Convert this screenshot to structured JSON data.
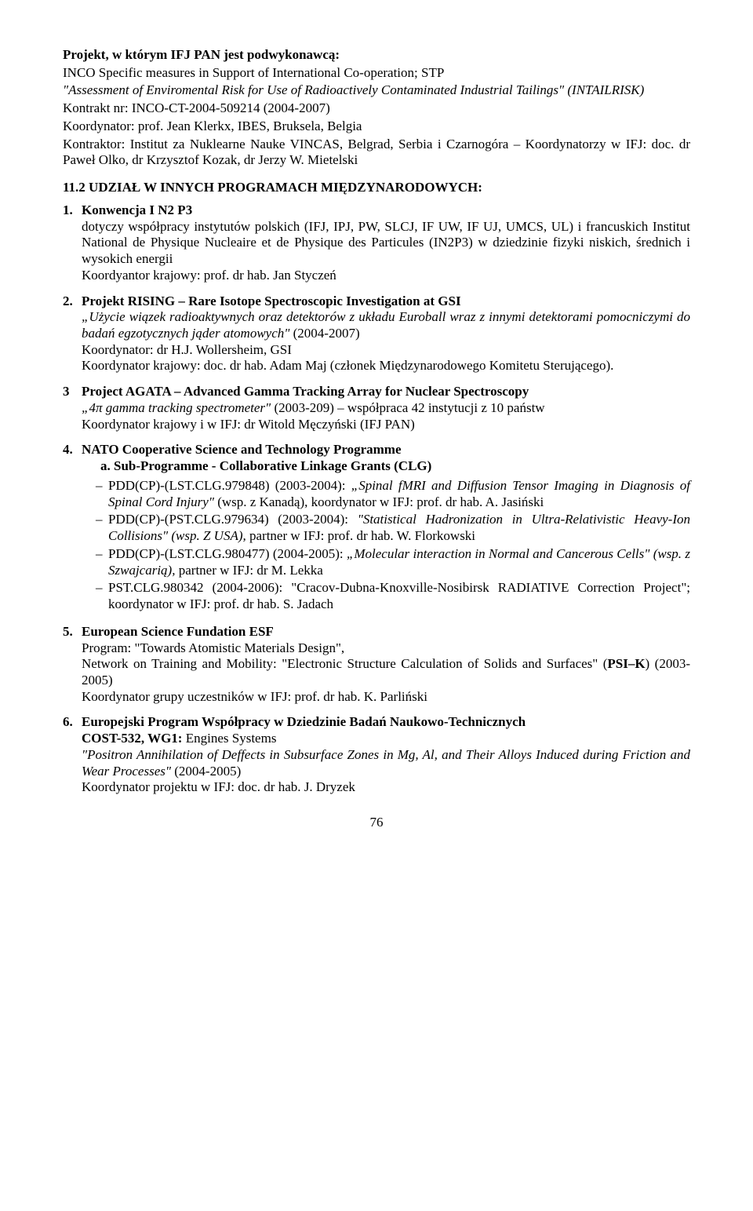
{
  "header": {
    "project_lead": "Projekt, w którym IFJ PAN jest podwykonawcą:",
    "project_line1": "INCO Specific measures in Support of International Co-operation; STP",
    "project_line2_prefix": "\"Assessment of Enviromental Risk for Use of Radioactively Contaminated Industrial Tailings\" (INTAILRISK)",
    "contract": "Kontrakt nr: INCO-CT-2004-509214 (2004-2007)",
    "coord1": "Koordynator: prof. Jean Klerkx, IBES, Bruksela, Belgia",
    "contractor": "Kontraktor: Institut za Nuklearne Nauke VINCAS, Belgrad, Serbia i Czarnogóra – Koordynatorzy w IFJ: doc. dr Paweł Olko, dr Krzysztof Kozak, dr Jerzy W. Mietelski"
  },
  "section_heading": "11.2 UDZIAŁ W INNYCH PROGRAMACH MIĘDZYNARODOWYCH:",
  "items": {
    "1": {
      "num": "1.",
      "title": "Konwencja I N2 P3",
      "body": "dotyczy współpracy instytutów polskich (IFJ, IPJ, PW, SLCJ, IF UW, IF UJ, UMCS, UL) i francuskich Institut National de Physique Nucleaire et de Physique des Particules (IN2P3) w dziedzinie fizyki niskich, średnich i wysokich energii",
      "krajowy": " Koordyantor krajowy: prof. dr hab. Jan Styczeń"
    },
    "2": {
      "num": "2.",
      "title": "Projekt RISING – Rare Isotope Spectroscopic Investigation at GSI",
      "quote": "„Użycie wiązek radioaktywnych oraz detektorów z układu Euroball wraz z innymi detektorami pomocniczymi do badań egzotycznych jąder atomowych\"",
      "quote_tail": " (2004-2007)",
      "line3": "Koordynator: dr H.J. Wollersheim, GSI",
      "line4": "Koordynator krajowy: doc. dr hab. Adam Maj (członek  Międzynarodowego Komitetu Sterującego)."
    },
    "3": {
      "num": "3",
      "title": "Project AGATA – Advanced Gamma Tracking Array for Nuclear Spectroscopy",
      "quote": "„4π gamma tracking spectrometer\"",
      "quote_tail": " (2003-209) – współpraca 42 instytucji z 10 państw",
      "line3": "Koordynator krajowy i w IFJ: dr Witold Męczyński (IFJ PAN)"
    },
    "4": {
      "num": "4.",
      "title": "NATO Cooperative Science and Technology Programme",
      "sub_a": "a. Sub-Programme - Collaborative Linkage  Grants (CLG)",
      "bullets": {
        "0": {
          "pre": "PDD(CP)-(LST.CLG.979848) (2003-2004): ",
          "it": "„Spinal fMRI and Diffusion Tensor Imaging in Diagnosis of Spinal Cord Injury\"",
          "post": " (wsp. z Kanadą), koordynator w IFJ: prof. dr hab. A. Jasiński"
        },
        "1": {
          "pre": "PDD(CP)-(PST.CLG.979634) (2003-2004): ",
          "it": "\"Statistical Hadronization in Ultra-Relativistic Heavy-Ion Collisions\" (wsp. Z USA),",
          "post": " partner w IFJ: prof. dr hab. W. Florkowski"
        },
        "2": {
          "pre": "PDD(CP)-(LST.CLG.980477) (2004-2005): ",
          "it": "„Molecular interaction in Normal and Cancerous Cells\" (wsp. z Szwajcarią),",
          "post": " partner w IFJ: dr M. Lekka"
        },
        "3": {
          "pre": "PST.CLG.980342 (2004-2006): ",
          "it": "",
          "post": "\"Cracov-Dubna-Knoxville-Nosibirsk RADIATIVE Correction Project\"; koordynator w IFJ: prof. dr hab. S. Jadach"
        }
      }
    },
    "5": {
      "num": "5.",
      "title": "European Science Fundation ESF",
      "line2": "Program: \"Towards Atomistic Materials Design\",",
      "line3_pre": "Network on Training and Mobility: \"Electronic Structure Calculation of Solids and Surfaces\" (",
      "psi": "PSI–K",
      "line3_post": ") (2003-2005)",
      "line4": "Koordynator grupy uczestników w IFJ: prof. dr hab. K. Parliński"
    },
    "6": {
      "num": "6.",
      "title": "Europejski Program Współpracy w Dziedzinie Badań Naukowo-Technicznych",
      "line2": "COST-532, WG1:",
      "line2_tail": " Engines Systems",
      "quote": "\"Positron Annihilation of Deffects in Subsurface Zones in Mg, Al, and Their Alloys Induced during Friction and Wear Processes\"",
      "quote_tail": " (2004-2005)",
      "line4": "Koordynator projektu w IFJ: doc. dr hab. J. Dryzek"
    }
  },
  "page_number": "76"
}
